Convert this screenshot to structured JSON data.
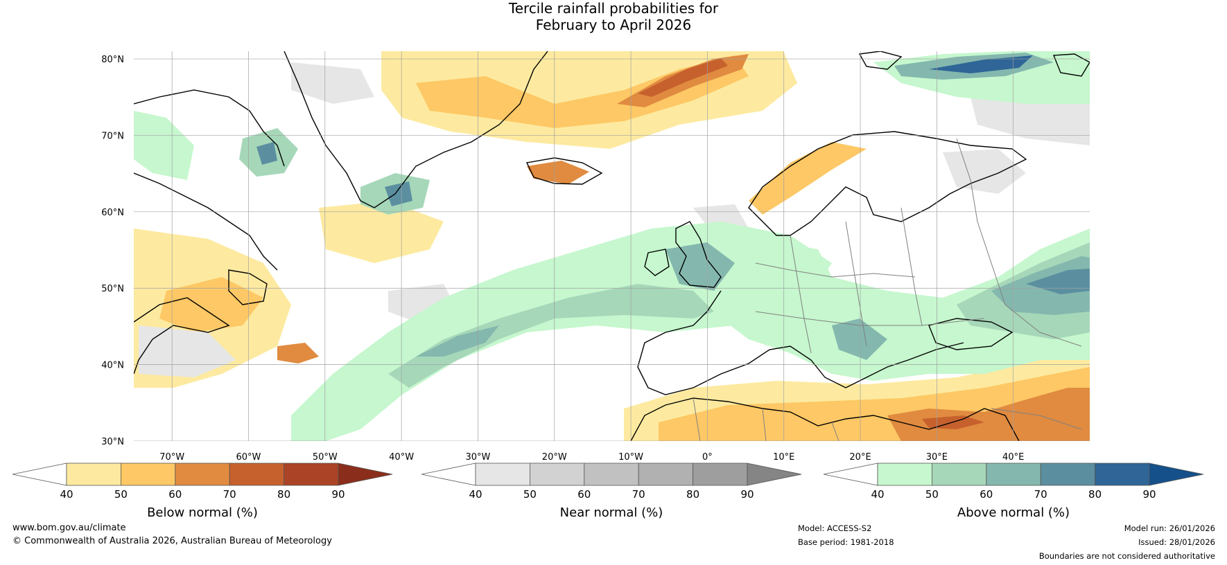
{
  "title": {
    "line1": "Tercile rainfall probabilities for",
    "line2": "February to April 2026"
  },
  "map": {
    "latitude_labels": [
      "80°N",
      "70°N",
      "60°N",
      "50°N",
      "40°N",
      "30°N"
    ],
    "latitudes": [
      80,
      70,
      60,
      50,
      40,
      30
    ],
    "longitude_labels": [
      "70°W",
      "60°W",
      "50°W",
      "40°W",
      "30°W",
      "20°W",
      "10°W",
      "0°",
      "10°E",
      "20°E",
      "30°E",
      "40°E"
    ],
    "longitudes": [
      -70,
      -60,
      -50,
      -40,
      -30,
      -20,
      -10,
      0,
      10,
      20,
      30,
      40
    ],
    "extent": {
      "lon_min": -75,
      "lon_max": 50,
      "lat_min": 30,
      "lat_max": 81
    }
  },
  "colorbars": [
    {
      "title": "Below normal (%)",
      "ticks": [
        "40",
        "50",
        "60",
        "70",
        "80",
        "90"
      ],
      "colors": [
        "#ffffff",
        "#fdeaa0",
        "#fdc865",
        "#e08b40",
        "#c6612d",
        "#ab4326",
        "#8a2e1b"
      ]
    },
    {
      "title": "Near normal (%)",
      "ticks": [
        "40",
        "50",
        "60",
        "70",
        "80",
        "90"
      ],
      "colors": [
        "#ffffff",
        "#e6e6e6",
        "#d2d2d2",
        "#c1c1c1",
        "#b1b1b1",
        "#9e9e9e",
        "#858585"
      ]
    },
    {
      "title": "Above normal (%)",
      "ticks": [
        "40",
        "50",
        "60",
        "70",
        "80",
        "90"
      ],
      "colors": [
        "#ffffff",
        "#c6f7ce",
        "#a6d7b9",
        "#84b8ae",
        "#5b8fa0",
        "#2f6697",
        "#15508a"
      ]
    }
  ],
  "footer": {
    "website": "www.bom.gov.au/climate",
    "copyright": "© Commonwealth of Australia 2026, Australian Bureau of Meteorology",
    "model": "Model: ACCESS-S2",
    "base_period": "Base period: 1981-2018",
    "model_run": "Model run: 26/01/2026",
    "issued": "Issued: 28/01/2026",
    "disclaimer": "Boundaries are not considered authoritative"
  }
}
